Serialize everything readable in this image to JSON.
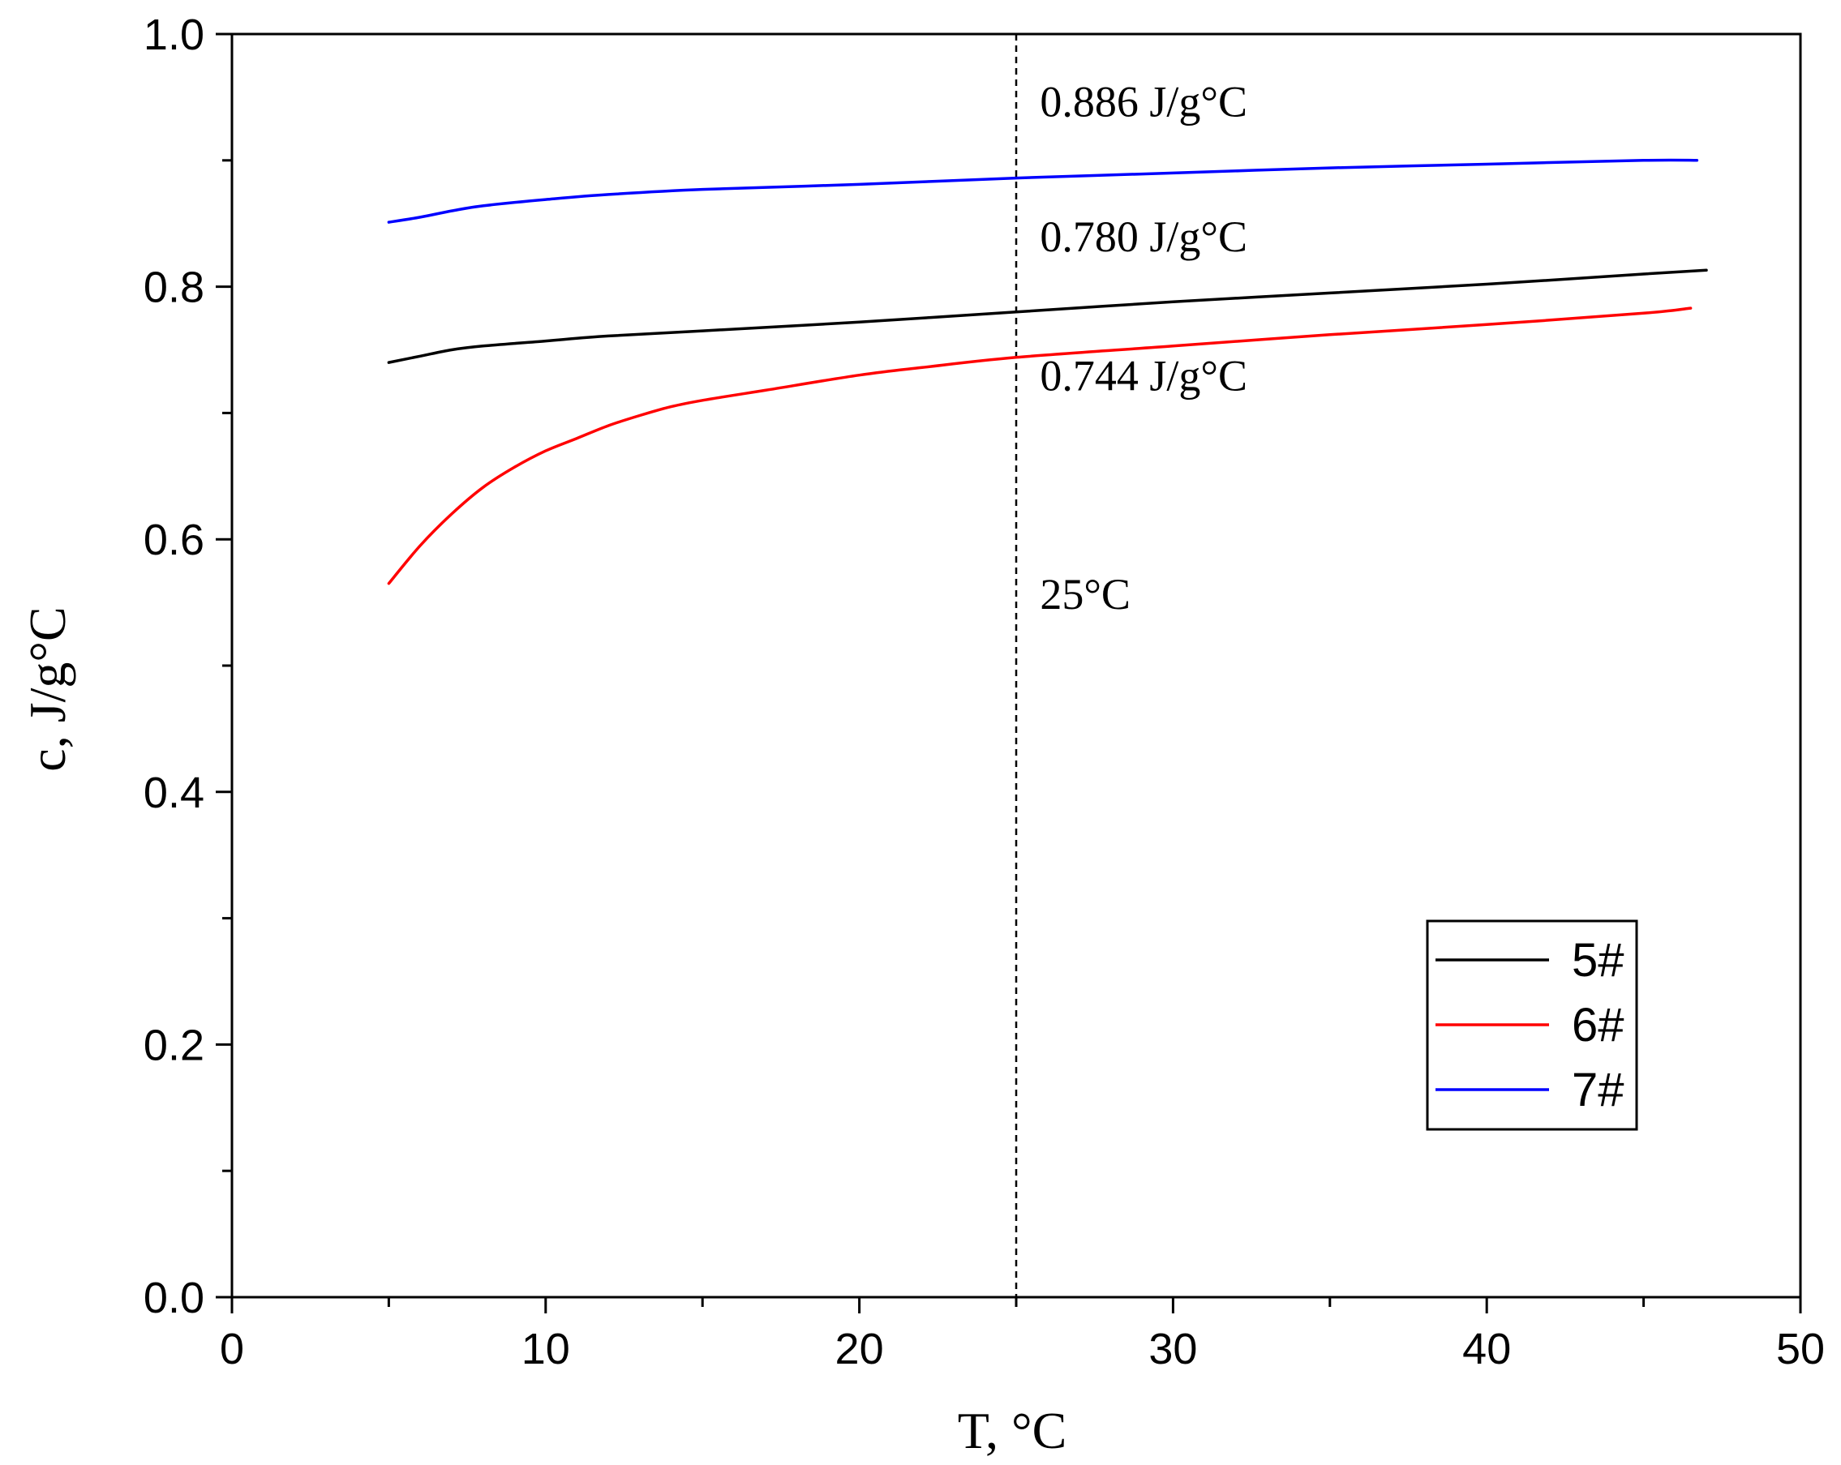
{
  "chart_data": {
    "type": "line",
    "title": "",
    "xlabel": "T, °C",
    "ylabel": "c, J/g°C",
    "xlim": [
      0,
      50
    ],
    "ylim": [
      0.0,
      1.0
    ],
    "x_ticks": [
      0,
      10,
      20,
      30,
      40,
      50
    ],
    "x_tick_labels": [
      "0",
      "10",
      "20",
      "30",
      "40",
      "50"
    ],
    "y_ticks": [
      0.0,
      0.2,
      0.4,
      0.6,
      0.8,
      1.0
    ],
    "y_tick_labels": [
      "0.0",
      "0.2",
      "0.4",
      "0.6",
      "0.8",
      "1.0"
    ],
    "grid": false,
    "legend_position": "bottom-right",
    "series": [
      {
        "name": "5#",
        "color": "#000000",
        "x": [
          5,
          6,
          7,
          8,
          10,
          12,
          15,
          20,
          25,
          30,
          35,
          40,
          45,
          47
        ],
        "y": [
          0.74,
          0.745,
          0.75,
          0.753,
          0.757,
          0.761,
          0.765,
          0.772,
          0.78,
          0.788,
          0.795,
          0.802,
          0.81,
          0.813
        ]
      },
      {
        "name": "6#",
        "color": "#ff0000",
        "x": [
          5,
          6,
          7,
          8,
          9,
          10,
          11,
          12,
          13,
          14,
          15,
          17,
          20,
          22,
          25,
          30,
          35,
          40,
          45,
          46.5
        ],
        "y": [
          0.565,
          0.595,
          0.62,
          0.641,
          0.657,
          0.67,
          0.68,
          0.69,
          0.698,
          0.705,
          0.71,
          0.718,
          0.73,
          0.736,
          0.744,
          0.753,
          0.762,
          0.77,
          0.779,
          0.783
        ]
      },
      {
        "name": "7#",
        "color": "#0000ff",
        "x": [
          5,
          6,
          7,
          8,
          10,
          12,
          15,
          20,
          25,
          30,
          35,
          40,
          45,
          46.7
        ],
        "y": [
          0.851,
          0.855,
          0.86,
          0.864,
          0.869,
          0.873,
          0.877,
          0.881,
          0.886,
          0.89,
          0.894,
          0.897,
          0.9,
          0.9
        ]
      }
    ],
    "reference_line": {
      "x": 25,
      "style": "dashed",
      "label": "25°C"
    },
    "annotations": [
      {
        "text": "0.886 J/g°C",
        "x": 25.5,
        "y": 0.935
      },
      {
        "text": "0.780 J/g°C",
        "x": 25.5,
        "y": 0.828
      },
      {
        "text": "0.744 J/g°C",
        "x": 25.5,
        "y": 0.718
      },
      {
        "text": "25°C",
        "x": 25.5,
        "y": 0.545
      }
    ]
  }
}
